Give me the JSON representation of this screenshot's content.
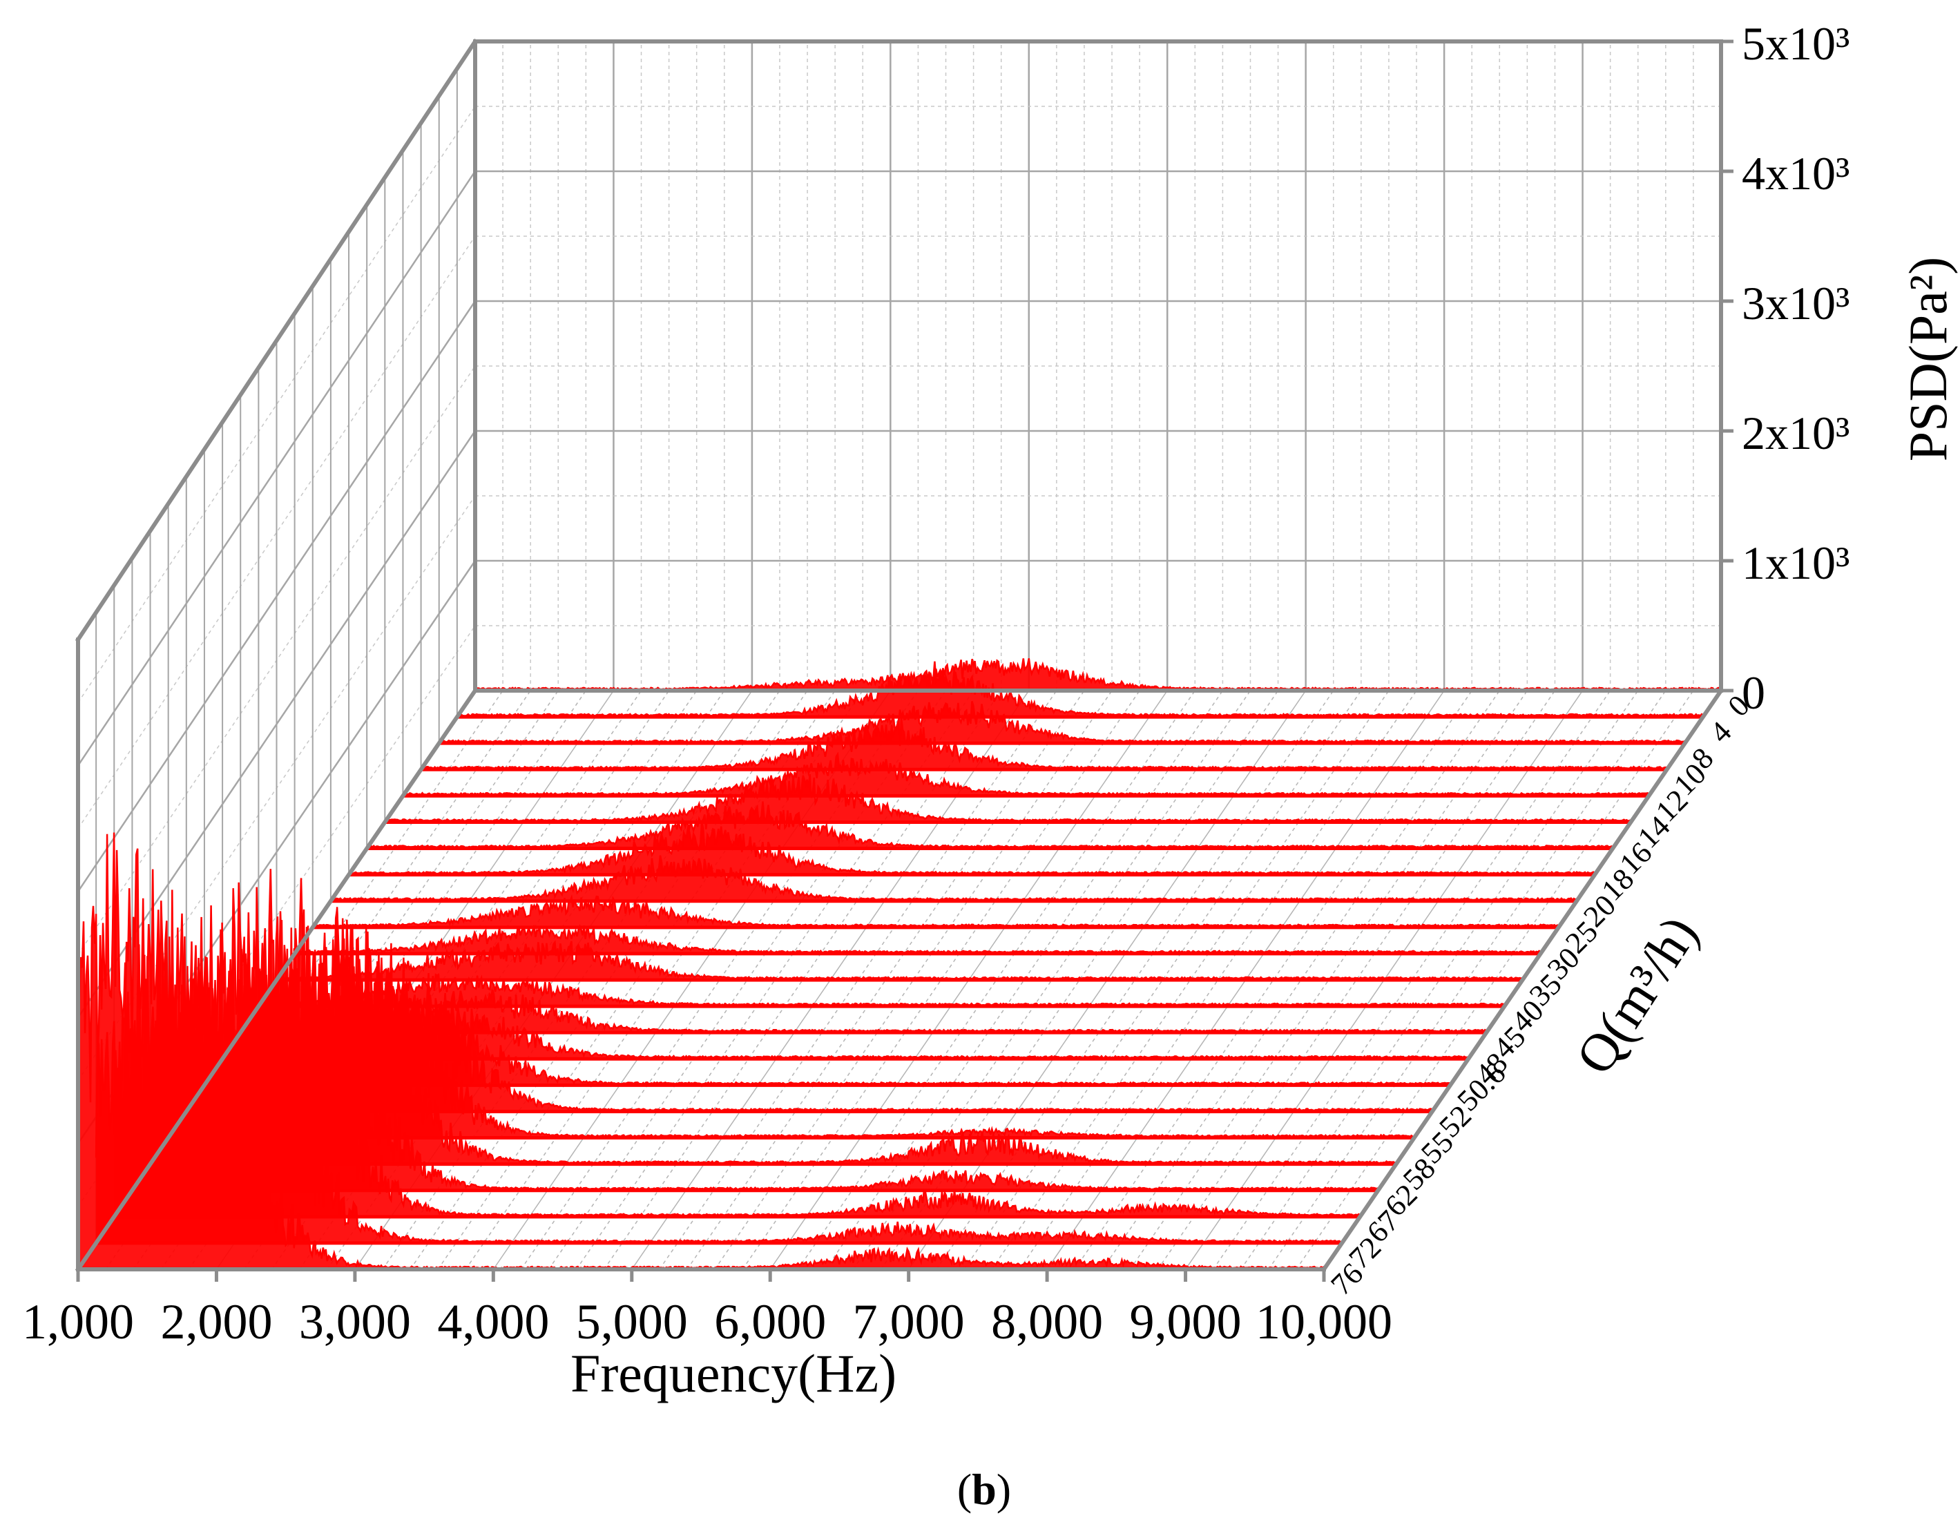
{
  "chart_data": {
    "type": "waterfall-3d",
    "x_axis": {
      "title": "Frequency(Hz)",
      "range": [
        1000,
        10000
      ],
      "ticks": [
        {
          "value": 1000,
          "label": "1,000"
        },
        {
          "value": 2000,
          "label": "2,000"
        },
        {
          "value": 3000,
          "label": "3,000"
        },
        {
          "value": 4000,
          "label": "4,000"
        },
        {
          "value": 5000,
          "label": "5,000"
        },
        {
          "value": 6000,
          "label": "6,000"
        },
        {
          "value": 7000,
          "label": "7,000"
        },
        {
          "value": 8000,
          "label": "8,000"
        },
        {
          "value": 9000,
          "label": "9,000"
        },
        {
          "value": 10000,
          "label": "10,000"
        }
      ]
    },
    "z_axis": {
      "title": "PSD(Pa²)",
      "range": [
        0,
        5000
      ],
      "ticks": [
        {
          "value": 0,
          "label": "0"
        },
        {
          "value": 1000,
          "label": "1x10³"
        },
        {
          "value": 2000,
          "label": "2x10³"
        },
        {
          "value": 3000,
          "label": "3x10³"
        },
        {
          "value": 4000,
          "label": "4x10³"
        },
        {
          "value": 5000,
          "label": "5x10³"
        }
      ]
    },
    "y_axis": {
      "title": "Q(m³/h)",
      "categories": [
        "0",
        "4",
        "8",
        "10",
        "12",
        "14",
        "16",
        "18",
        "20",
        "25",
        "30",
        "35",
        "40",
        "45",
        "48",
        "50.6",
        "52",
        "55",
        "58",
        "62",
        "67",
        "72",
        "76"
      ]
    },
    "grid": true,
    "series_color": "#ff0000",
    "series_peaks": [
      {
        "q": "0",
        "peaks": [
          [
            3500,
            60
          ],
          [
            4400,
            120
          ],
          [
            4800,
            160
          ],
          [
            5200,
            80
          ]
        ]
      },
      {
        "q": "4",
        "peaks": [
          [
            4200,
            170
          ],
          [
            4500,
            200
          ],
          [
            4700,
            120
          ]
        ]
      },
      {
        "q": "8",
        "peaks": [
          [
            4300,
            130
          ],
          [
            4700,
            180
          ],
          [
            4900,
            120
          ]
        ]
      },
      {
        "q": "10",
        "peaks": [
          [
            4000,
            150
          ],
          [
            4400,
            200
          ],
          [
            4600,
            130
          ]
        ]
      },
      {
        "q": "12",
        "peaks": [
          [
            3900,
            140
          ],
          [
            4300,
            170
          ],
          [
            4500,
            120
          ]
        ]
      },
      {
        "q": "14",
        "peaks": [
          [
            3600,
            140
          ],
          [
            4000,
            200
          ],
          [
            4200,
            150
          ]
        ]
      },
      {
        "q": "16",
        "peaks": [
          [
            3300,
            120
          ],
          [
            3700,
            180
          ],
          [
            4000,
            180
          ]
        ]
      },
      {
        "q": "18",
        "peaks": [
          [
            3200,
            160
          ],
          [
            3600,
            200
          ],
          [
            3800,
            180
          ]
        ]
      },
      {
        "q": "20",
        "peaks": [
          [
            3100,
            130
          ],
          [
            3500,
            200
          ],
          [
            3800,
            150
          ]
        ]
      },
      {
        "q": "25",
        "peaks": [
          [
            2500,
            100
          ],
          [
            3000,
            150
          ],
          [
            3400,
            100
          ]
        ]
      },
      {
        "q": "30",
        "peaks": [
          [
            2400,
            120
          ],
          [
            2900,
            130
          ],
          [
            3300,
            100
          ]
        ]
      },
      {
        "q": "35",
        "peaks": [
          [
            2200,
            150
          ],
          [
            2700,
            140
          ],
          [
            3200,
            230
          ]
        ]
      },
      {
        "q": "40",
        "peaks": [
          [
            2100,
            160
          ],
          [
            2600,
            130
          ],
          [
            3100,
            120
          ]
        ]
      },
      {
        "q": "45",
        "peaks": [
          [
            2000,
            200
          ],
          [
            2600,
            170
          ],
          [
            3000,
            220
          ]
        ]
      },
      {
        "q": "48",
        "peaks": [
          [
            1900,
            250
          ],
          [
            2400,
            300
          ],
          [
            2900,
            260
          ]
        ]
      },
      {
        "q": "50.6",
        "peaks": [
          [
            1800,
            350
          ],
          [
            2300,
            500
          ],
          [
            2800,
            400
          ]
        ]
      },
      {
        "q": "52",
        "peaks": [
          [
            1700,
            500
          ],
          [
            2200,
            900
          ],
          [
            2700,
            800
          ]
        ]
      },
      {
        "q": "55",
        "peaks": [
          [
            1500,
            700
          ],
          [
            2100,
            1200
          ],
          [
            2600,
            1100
          ],
          [
            7000,
            60
          ]
        ]
      },
      {
        "q": "58",
        "peaks": [
          [
            1400,
            800
          ],
          [
            2000,
            1300
          ],
          [
            2500,
            1500
          ],
          [
            7000,
            250
          ]
        ]
      },
      {
        "q": "62",
        "peaks": [
          [
            1300,
            1000
          ],
          [
            1900,
            1600
          ],
          [
            2400,
            1400
          ],
          [
            7000,
            150
          ]
        ]
      },
      {
        "q": "67",
        "peaks": [
          [
            1200,
            1300
          ],
          [
            1800,
            1800
          ],
          [
            2300,
            1700
          ],
          [
            7000,
            200
          ],
          [
            8600,
            90
          ]
        ]
      },
      {
        "q": "72",
        "peaks": [
          [
            1150,
            1700
          ],
          [
            1700,
            1500
          ],
          [
            2200,
            1400
          ],
          [
            6800,
            150
          ],
          [
            8000,
            80
          ]
        ]
      },
      {
        "q": "76",
        "peaks": [
          [
            1100,
            2300
          ],
          [
            1500,
            1800
          ],
          [
            2000,
            1300
          ],
          [
            6900,
            170
          ],
          [
            8300,
            70
          ]
        ]
      }
    ]
  },
  "caption": {
    "open": "(",
    "letter": "b",
    "close": ")"
  }
}
